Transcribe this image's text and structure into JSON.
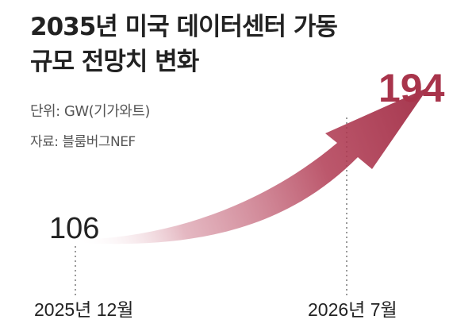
{
  "chart_data": {
    "type": "line",
    "title_line1": "2035년 미국 데이터센터 가동",
    "title_line2": "규모 전망치 변화",
    "unit": "단위: GW(기가와트)",
    "source": "자료: 블룸버그NEF",
    "categories": [
      "2025년 12월",
      "2026년 7월"
    ],
    "values": [
      106,
      194
    ],
    "start_label": "106",
    "end_label": "194",
    "colors": {
      "arrow": "#b03a52",
      "highlight": "#a8344b",
      "text": "#222222",
      "guide": "#9a9a9a"
    }
  }
}
